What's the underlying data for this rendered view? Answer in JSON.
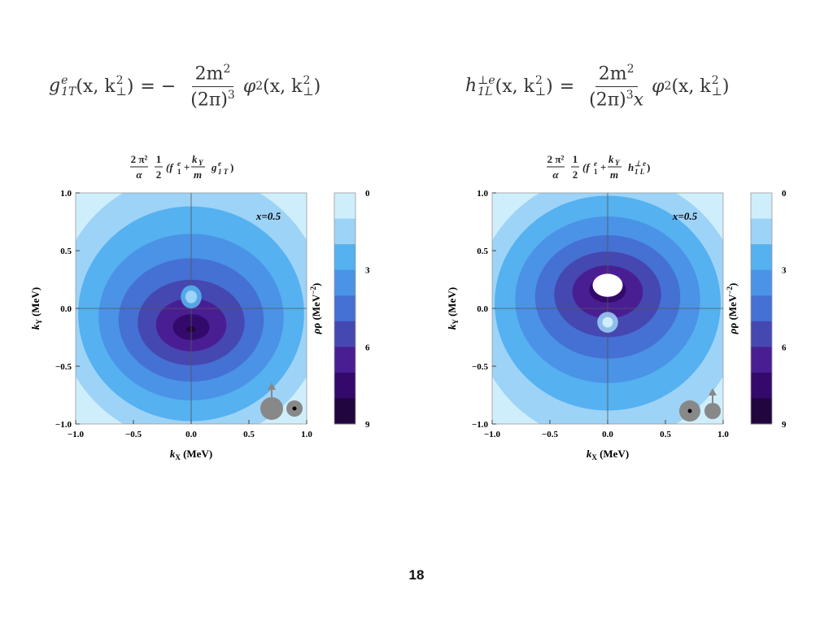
{
  "formulas": {
    "left": {
      "func": "g",
      "func_sup": "e",
      "func_sub": "1T",
      "args": "(x, k",
      "args_sup": "2",
      "args_sub": "⊥",
      "eq": "= −",
      "num": "2m",
      "num_sup": "2",
      "den": "(2π)",
      "den_sup": "3",
      "rhs": "φ",
      "rhs_sup": "2",
      "rhs_args": "(x, k",
      "rhs_args_sup": "2",
      "rhs_args_sub": "⊥"
    },
    "right": {
      "func": "h",
      "func_sup": "⊥e",
      "func_sub": "1L",
      "args": "(x, k",
      "args_sup": "2",
      "args_sub": "⊥",
      "eq": "=",
      "num": "2m",
      "num_sup": "2",
      "den": "(2π)",
      "den_sup": "3",
      "den_tail": "x",
      "rhs": "φ",
      "rhs_sup": "2",
      "rhs_args": "(x, k",
      "rhs_args_sup": "2",
      "rhs_args_sub": "⊥"
    }
  },
  "slide_number": "18",
  "chart_data": [
    {
      "type": "heatmap",
      "title": "2π²/α · 1/2 (f₁ᵉ + k_Y/m g₁ᵉT)",
      "title_parts": {
        "a_num": "2 π²",
        "a_den": "α",
        "b_num": "1",
        "b_den": "2",
        "c1": "(f",
        "c1_sup": "e",
        "c1_sub": "1",
        "plus": "+",
        "c_num": "k",
        "c_num_sub": "Y",
        "c_den": "m",
        "c2": "g",
        "c2_sup": "e",
        "c2_sub": "1 T",
        "c3": ")"
      },
      "xlabel": "k_X (MeV)",
      "xlabel_main": "k",
      "xlabel_sub": "X",
      "xlabel_unit": " (MeV)",
      "ylabel": "k_Y (MeV)",
      "ylabel_main": "k",
      "ylabel_sub": "Y",
      "ylabel_unit": " (MeV)",
      "xlim": [
        -1.0,
        1.0
      ],
      "ylim": [
        -1.0,
        1.0
      ],
      "xticks": [
        "−1.0",
        "−0.5",
        "0.0",
        "0.5",
        "1.0"
      ],
      "yticks": [
        "1.0",
        "0.5",
        "0.0",
        "−0.5",
        "−1.0"
      ],
      "annotation": "x=0.5",
      "colorbar": {
        "label": "ρ (MeV⁻²)",
        "label_main": "ρ (MeV",
        "label_sup": "−2",
        "label_end": ")",
        "range": [
          0,
          9
        ],
        "ticks": [
          "0",
          "3",
          "6",
          "9"
        ]
      },
      "density_peak": {
        "x": 0.0,
        "y": -0.18
      },
      "density_hole": {
        "x": 0.0,
        "y": 0.1
      },
      "spin_icon": "nucleon-up-quark-out-of-plane"
    },
    {
      "type": "heatmap",
      "title": "2π²/α · 1/2 (f₁ᵉ + k_Y/m h₁L^⊥e)",
      "title_parts": {
        "a_num": "2 π²",
        "a_den": "α",
        "b_num": "1",
        "b_den": "2",
        "c1": "(f",
        "c1_sup": "e",
        "c1_sub": "1",
        "plus": "+",
        "c_num": "k",
        "c_num_sub": "Y",
        "c_den": "m",
        "c2": "h",
        "c2_sup": "⊥ e",
        "c2_sub": "1 L",
        "c3": ")"
      },
      "xlabel": "k_X (MeV)",
      "xlabel_main": "k",
      "xlabel_sub": "X",
      "xlabel_unit": " (MeV)",
      "ylabel": "k_Y (MeV)",
      "ylabel_main": "k",
      "ylabel_sub": "Y",
      "ylabel_unit": " (MeV)",
      "xlim": [
        -1.0,
        1.0
      ],
      "ylim": [
        -1.0,
        1.0
      ],
      "xticks": [
        "−1.0",
        "−0.5",
        "0.0",
        "0.5",
        "1.0"
      ],
      "yticks": [
        "1.0",
        "0.5",
        "0.0",
        "−0.5",
        "−1.0"
      ],
      "annotation": "x=0.5",
      "colorbar": {
        "label": "ρ (MeV⁻²)",
        "label_main": "ρ (MeV",
        "label_sup": "−2",
        "label_end": ")",
        "range": [
          0,
          9
        ],
        "ticks": [
          "0",
          "3",
          "6",
          "9"
        ]
      },
      "density_peak": {
        "x": 0.0,
        "y": 0.18
      },
      "density_hole": {
        "x": 0.0,
        "y": -0.12
      },
      "spin_icon": "nucleon-out-of-plane-quark-up"
    }
  ],
  "colors": {
    "levels": [
      "#cfeefb",
      "#9dd3f7",
      "#55b1f0",
      "#4a93e6",
      "#4570d4",
      "#4548b0",
      "#4a1e93",
      "#330a6b",
      "#20053f"
    ],
    "icon": "#888888"
  }
}
